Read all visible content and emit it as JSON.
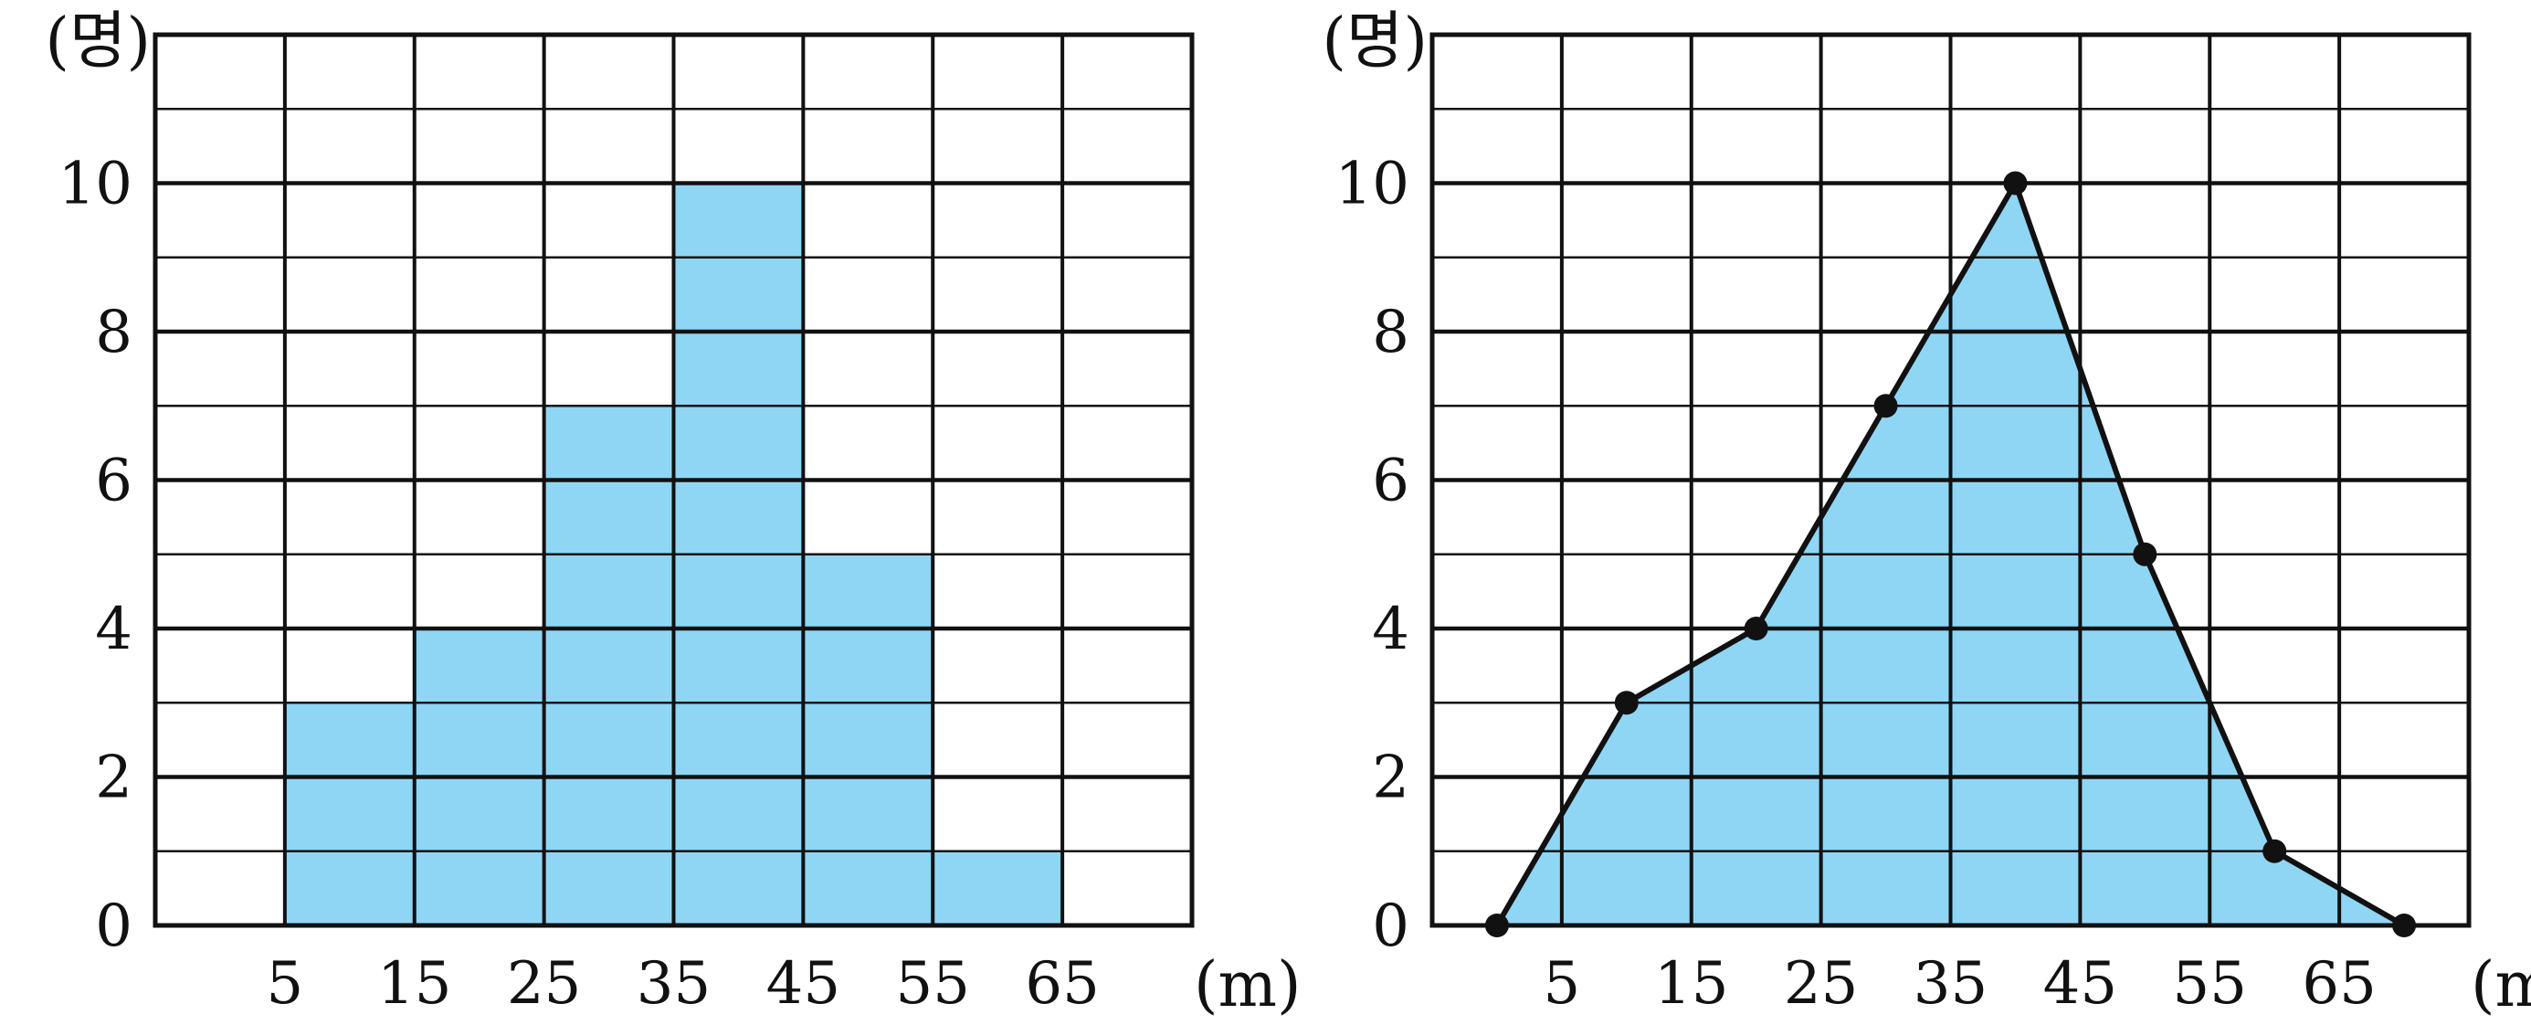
{
  "colors": {
    "fill": "#8fd6f5",
    "line": "#111111",
    "grid": "#111111",
    "background": "#ffffff"
  },
  "chart_data": [
    {
      "type": "bar",
      "subtype": "histogram",
      "bins": [
        [
          5,
          15
        ],
        [
          15,
          25
        ],
        [
          25,
          35
        ],
        [
          35,
          45
        ],
        [
          45,
          55
        ],
        [
          55,
          65
        ]
      ],
      "values": [
        3,
        4,
        7,
        10,
        5,
        1
      ],
      "xlabel": "(m)",
      "ylabel": "(명)",
      "x_ticks": [
        5,
        15,
        25,
        35,
        45,
        55,
        65
      ],
      "y_ticks": [
        0,
        2,
        4,
        6,
        8,
        10
      ],
      "xlim": [
        -5,
        75
      ],
      "ylim": [
        0,
        12
      ],
      "grid": true
    },
    {
      "type": "line",
      "subtype": "frequency-polygon",
      "x": [
        0,
        10,
        20,
        30,
        40,
        50,
        60,
        70
      ],
      "y": [
        0,
        3,
        4,
        7,
        10,
        5,
        1,
        0
      ],
      "filled": true,
      "markers": true,
      "xlabel": "(m)",
      "ylabel": "(명)",
      "x_ticks": [
        5,
        15,
        25,
        35,
        45,
        55,
        65
      ],
      "y_ticks": [
        0,
        2,
        4,
        6,
        8,
        10
      ],
      "xlim": [
        -5,
        75
      ],
      "ylim": [
        0,
        12
      ],
      "grid": true
    }
  ]
}
